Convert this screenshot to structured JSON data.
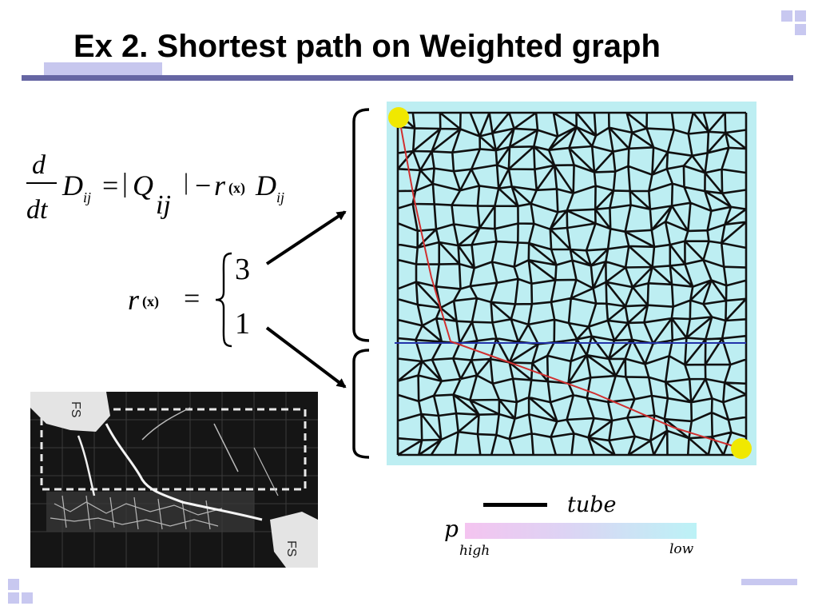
{
  "title": "Ex 2. Shortest path on Weighted graph",
  "equation": {
    "lhs_num": "d",
    "lhs_den": "dt",
    "D": "D",
    "ij": "ij",
    "equals": "=",
    "abs_open": "|",
    "Q": "Q",
    "Q_sub": "ij",
    "abs_close": "|",
    "minus": "−",
    "r": "r",
    "x_paren": "(x)",
    "D2": "D",
    "ij2": "ij"
  },
  "r_definition": {
    "r": "r",
    "x_paren": "(x)",
    "equals": "=",
    "value_top": "3",
    "value_bottom": "1"
  },
  "legend": {
    "tube_label": "tube",
    "p_label": "p",
    "high_label": "high",
    "low_label": "low"
  },
  "photo": {
    "label_top": "FS",
    "label_bottom": "FS"
  },
  "colors": {
    "title_underline": "#6666a3",
    "deco": "#c8c8f0",
    "network_bg": "#bdeef2",
    "node": "#f0e800",
    "shortest_path": "#d03030",
    "divider": "#2233aa"
  }
}
